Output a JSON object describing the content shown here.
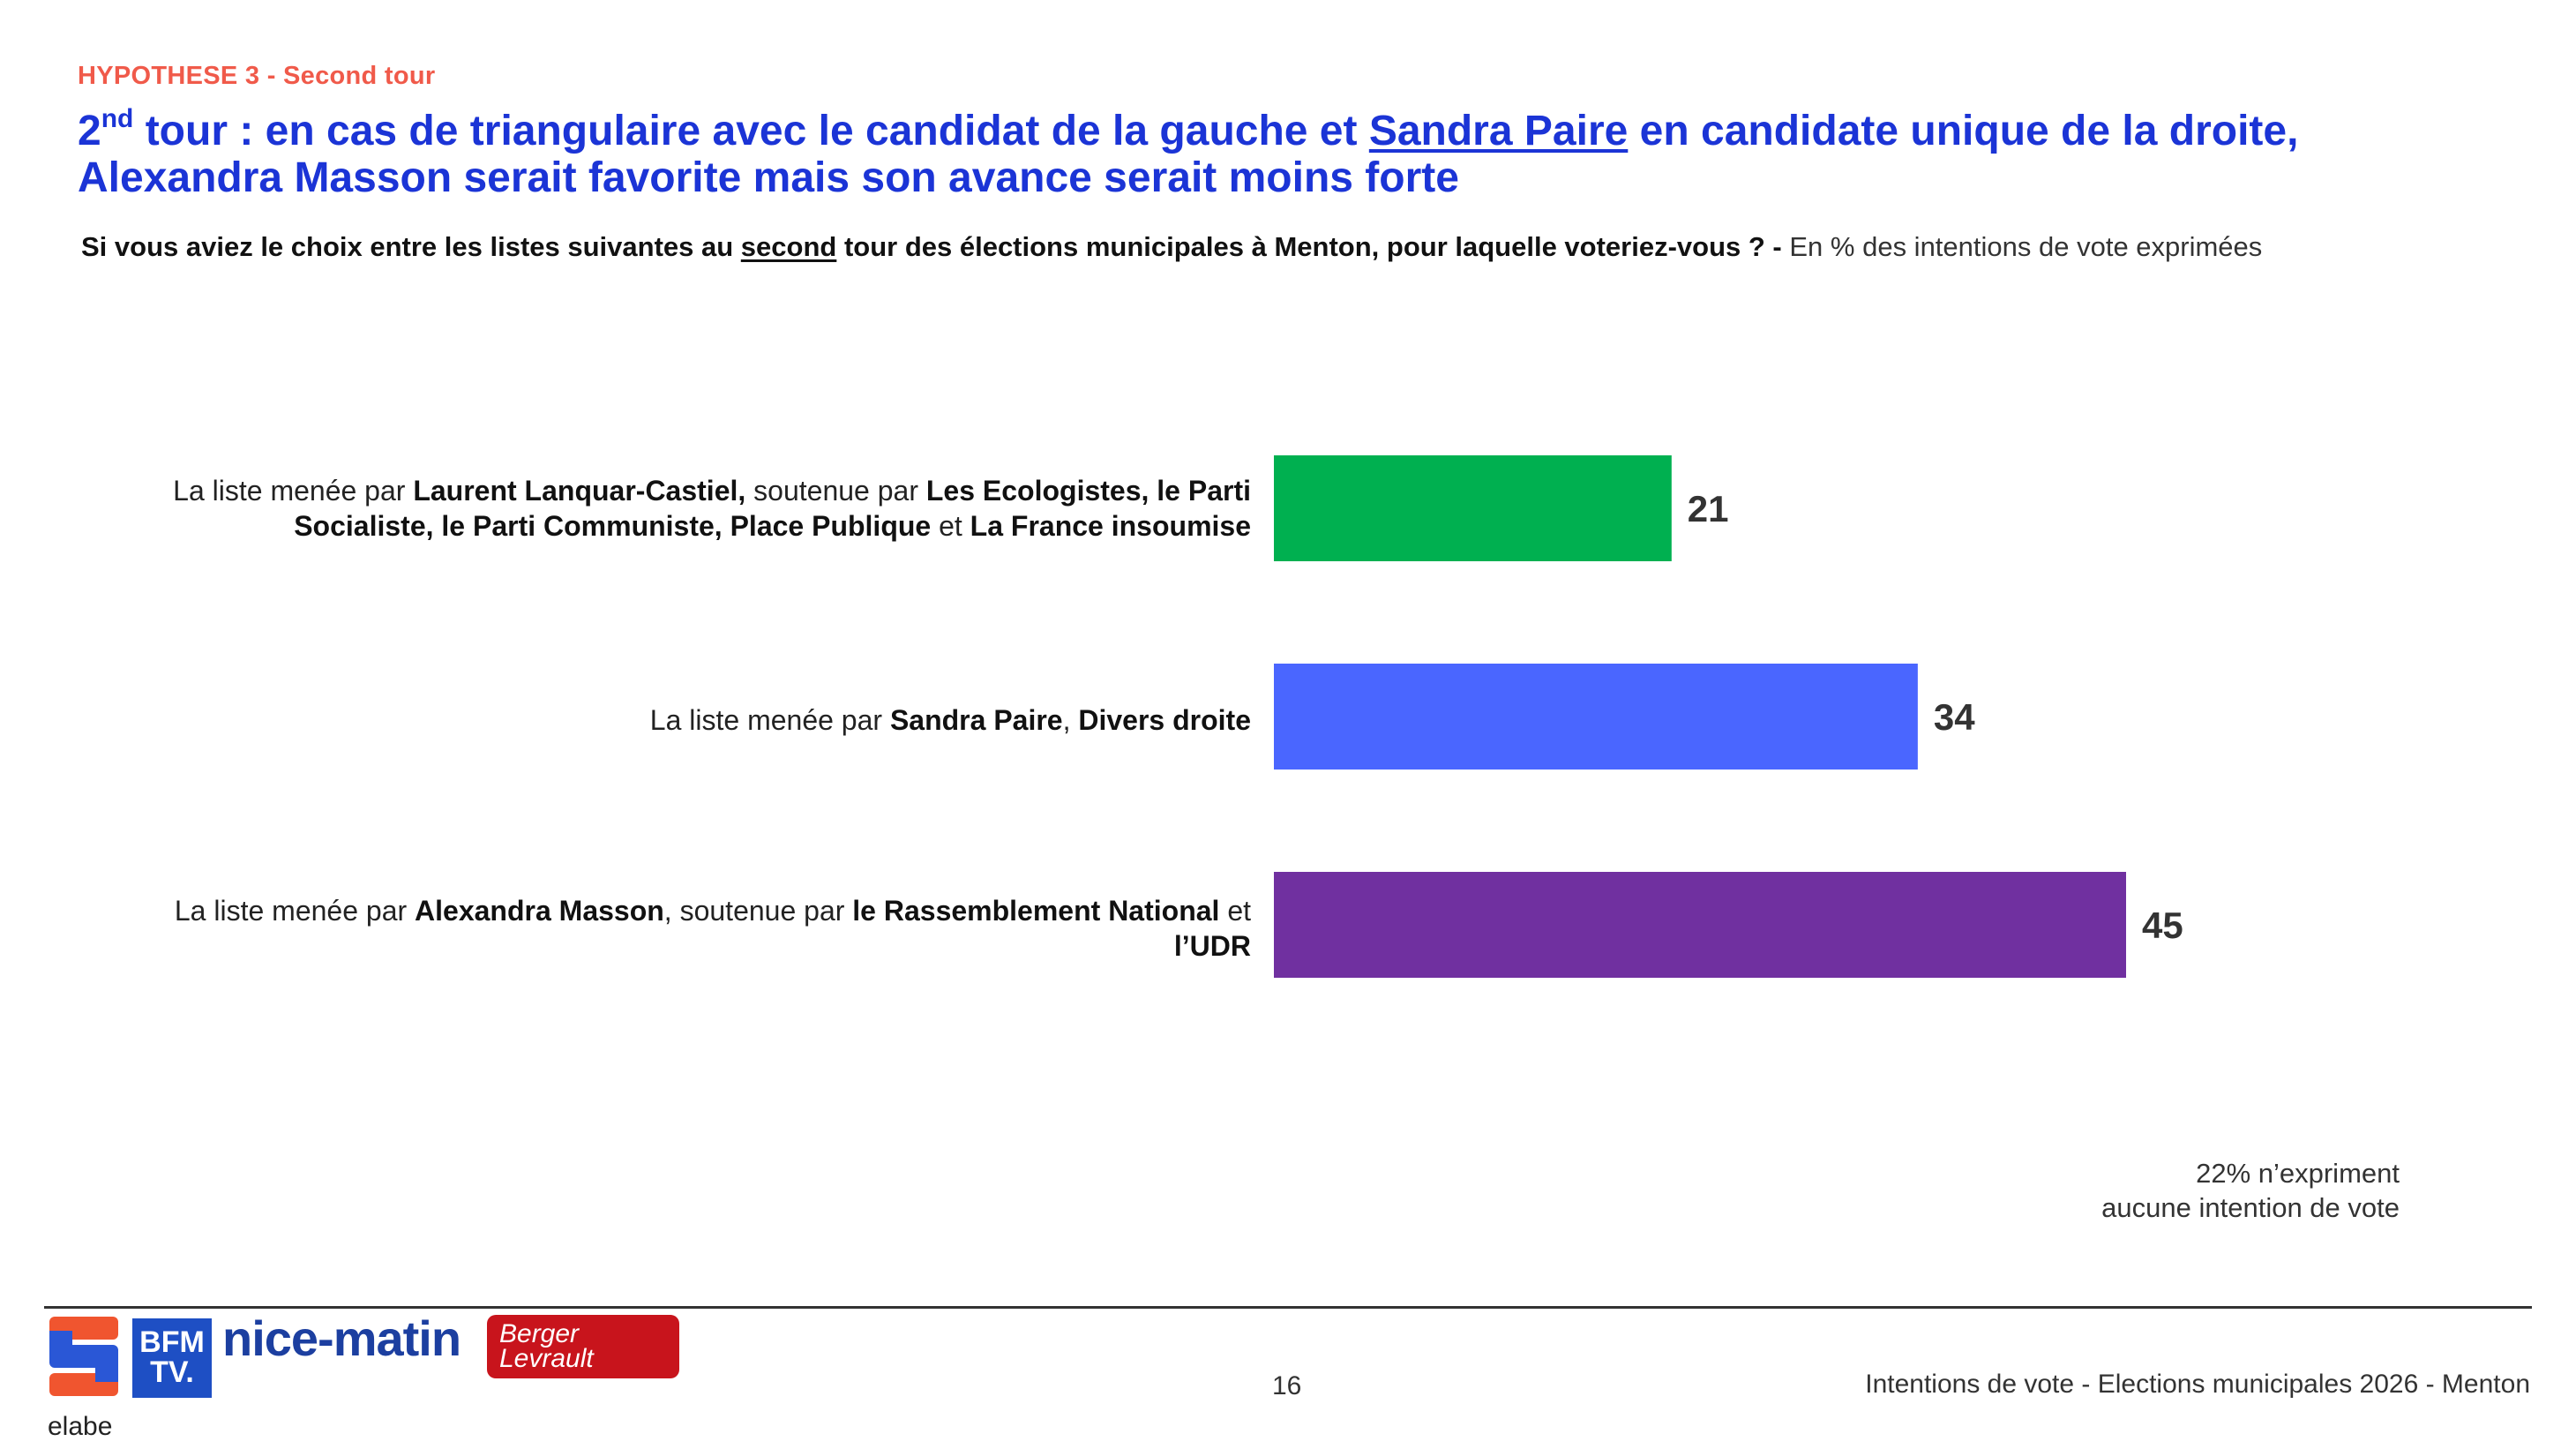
{
  "header": {
    "kicker": "HYPOTHESE 3 - Second tour",
    "title_part1": "2",
    "title_sup": "nd",
    "title_part2": " tour : en cas de triangulaire avec le candidat de la gauche et ",
    "title_underlined": "Sandra Paire",
    "title_part3": " en candidate unique de la droite, Alexandra Masson serait favorite mais son avance serait moins forte",
    "subtitle_part1": "Si vous aviez le choix entre les listes suivantes au ",
    "subtitle_underlined": "second",
    "subtitle_part2": " tour des élections municipales à Menton, pour laquelle voteriez-vous ? - ",
    "subtitle_note": "En % des intentions de vote exprimées"
  },
  "chart_data": {
    "type": "bar",
    "orientation": "horizontal",
    "categories": [
      "La liste menée par Laurent Lanquar-Castiel, soutenue par Les Ecologistes, le Parti Socialiste, le Parti Communiste, Place Publique et La France insoumise",
      "La liste menée par Sandra Paire, Divers droite",
      "La liste menée par Alexandra Masson, soutenue par le Rassemblement National et l'UDR"
    ],
    "values": [
      21,
      34,
      45
    ],
    "colors": [
      "#00b050",
      "#4a66ff",
      "#7030a0"
    ],
    "xlim": [
      0,
      45
    ],
    "grid": false,
    "legend": "none"
  },
  "labels": {
    "row1": {
      "a": "La liste menée par ",
      "b": "Laurent Lanquar-Castiel,",
      "c": " soutenue par ",
      "d": "Les Ecologistes, le Parti Socialiste, le Parti Communiste, Place Publique",
      "e": " et ",
      "f": "La France insoumise"
    },
    "row2": {
      "a": "La liste menée par ",
      "b": "Sandra Paire",
      "c": ", ",
      "d": "Divers droite"
    },
    "row3": {
      "a": "La liste menée par ",
      "b": "Alexandra Masson",
      "c": ", soutenue par ",
      "d": "le Rassemblement National",
      "e": " et ",
      "f": "l’UDR"
    }
  },
  "abstain": {
    "line1": "22% n’expriment",
    "line2": "aucune intention de vote"
  },
  "footer": {
    "page_number": "16",
    "source": "Intentions de vote - Elections municipales 2026 - Menton",
    "logo_elabe": "elabe",
    "logo_bfm_line1": "BFM",
    "logo_bfm_line2": "TV.",
    "logo_nice": "nice-matin",
    "logo_berger_line1": "Berger",
    "logo_berger_line2": "Levrault"
  }
}
